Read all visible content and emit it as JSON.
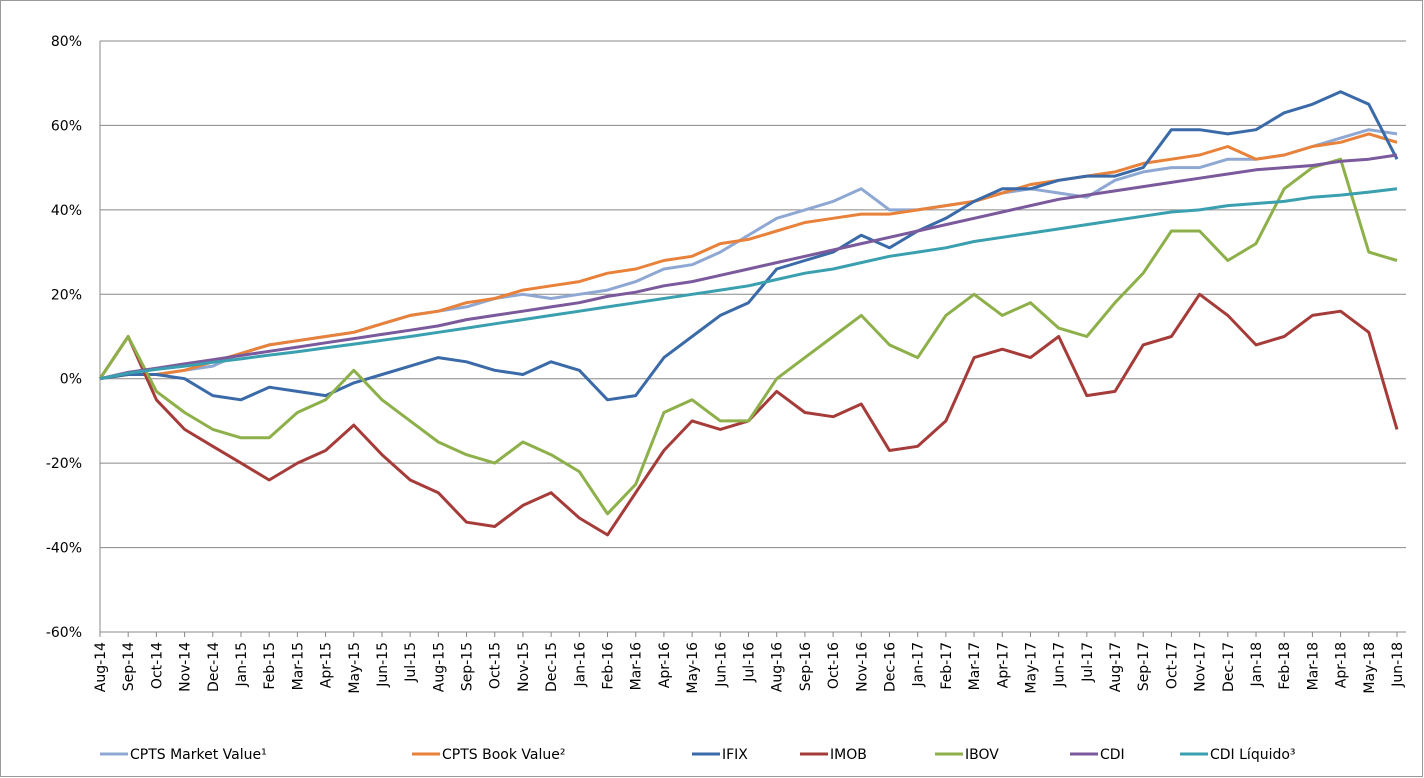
{
  "chart_data": {
    "type": "line",
    "categories": [
      "Aug-14",
      "Sep-14",
      "Oct-14",
      "Nov-14",
      "Dec-14",
      "Jan-15",
      "Feb-15",
      "Mar-15",
      "Apr-15",
      "May-15",
      "Jun-15",
      "Jul-15",
      "Aug-15",
      "Sep-15",
      "Oct-15",
      "Nov-15",
      "Dec-15",
      "Jan-16",
      "Feb-16",
      "Mar-16",
      "Apr-16",
      "May-16",
      "Jun-16",
      "Jul-16",
      "Aug-16",
      "Sep-16",
      "Oct-16",
      "Nov-16",
      "Dec-16",
      "Jan-17",
      "Feb-17",
      "Mar-17",
      "Apr-17",
      "May-17",
      "Jun-17",
      "Jul-17",
      "Aug-17",
      "Sep-17",
      "Oct-17",
      "Nov-17",
      "Dec-17",
      "Jan-18",
      "Feb-18",
      "Mar-18",
      "Apr-18",
      "May-18",
      "Jun-18"
    ],
    "series": [
      {
        "name": "CPTS Market Value¹",
        "color": "#8fa8d3",
        "values": [
          0,
          1,
          1,
          2,
          3,
          6,
          8,
          9,
          10,
          11,
          13,
          15,
          16,
          17,
          19,
          20,
          19,
          20,
          21,
          23,
          26,
          27,
          30,
          34,
          38,
          40,
          42,
          45,
          40,
          40,
          41,
          42,
          44,
          45,
          44,
          43,
          47,
          49,
          50,
          50,
          52,
          52,
          53,
          55,
          57,
          59,
          58
        ]
      },
      {
        "name": "CPTS Book Value²",
        "color": "#e8823a",
        "values": [
          0,
          1,
          1,
          2,
          4,
          6,
          8,
          9,
          10,
          11,
          13,
          15,
          16,
          18,
          19,
          21,
          22,
          23,
          25,
          26,
          28,
          29,
          32,
          33,
          35,
          37,
          38,
          39,
          39,
          40,
          41,
          42,
          44,
          46,
          47,
          48,
          49,
          51,
          52,
          53,
          55,
          52,
          53,
          55,
          56,
          58,
          56
        ]
      },
      {
        "name": "IFIX",
        "color": "#3a6aa8",
        "values": [
          0,
          1,
          1,
          0,
          -4,
          -5,
          -2,
          -3,
          -4,
          -1,
          1,
          3,
          5,
          4,
          2,
          1,
          4,
          2,
          -5,
          -4,
          5,
          10,
          15,
          18,
          26,
          28,
          30,
          34,
          31,
          35,
          38,
          42,
          45,
          45,
          47,
          48,
          48,
          50,
          59,
          59,
          58,
          59,
          63,
          65,
          68,
          65,
          52
        ]
      },
      {
        "name": "IMOB",
        "color": "#a63c3a",
        "values": [
          0,
          10,
          -5,
          -12,
          -16,
          -20,
          -24,
          -20,
          -17,
          -11,
          -18,
          -24,
          -27,
          -34,
          -35,
          -30,
          -27,
          -33,
          -37,
          -27,
          -17,
          -10,
          -12,
          -10,
          -3,
          -8,
          -9,
          -6,
          -17,
          -16,
          -10,
          5,
          7,
          5,
          10,
          -4,
          -3,
          8,
          10,
          20,
          15,
          8,
          10,
          15,
          16,
          11,
          -12
        ]
      },
      {
        "name": "IBOV",
        "color": "#8db04a",
        "values": [
          0,
          10,
          -3,
          -8,
          -12,
          -14,
          -14,
          -8,
          -5,
          2,
          -5,
          -10,
          -15,
          -18,
          -20,
          -15,
          -18,
          -22,
          -32,
          -25,
          -8,
          -5,
          -10,
          -10,
          0,
          5,
          10,
          15,
          8,
          5,
          15,
          20,
          15,
          18,
          12,
          10,
          18,
          25,
          35,
          35,
          28,
          32,
          45,
          50,
          52,
          30,
          28
        ]
      },
      {
        "name": "CDI",
        "color": "#7a5a9c",
        "values": [
          0,
          1.5,
          2.5,
          3.5,
          4.5,
          5.5,
          6.5,
          7.5,
          8.5,
          9.5,
          10.5,
          11.5,
          12.5,
          14,
          15,
          16,
          17,
          18,
          19.5,
          20.5,
          22,
          23,
          24.5,
          26,
          27.5,
          29,
          30.5,
          32,
          33.5,
          35,
          36.5,
          38,
          39.5,
          41,
          42.5,
          43.5,
          44.5,
          45.5,
          46.5,
          47.5,
          48.5,
          49.5,
          50,
          50.5,
          51.5,
          52,
          53
        ]
      },
      {
        "name": "CDI Líquido³",
        "color": "#3aa0b0",
        "values": [
          0,
          1.3,
          2.2,
          3,
          3.9,
          4.7,
          5.6,
          6.4,
          7.3,
          8.2,
          9.1,
          10,
          11,
          12,
          13,
          14,
          15,
          16,
          17,
          18,
          19,
          20,
          21,
          22,
          23.5,
          25,
          26,
          27.5,
          29,
          30,
          31,
          32.5,
          33.5,
          34.5,
          35.5,
          36.5,
          37.5,
          38.5,
          39.5,
          40,
          41,
          41.5,
          42,
          43,
          43.5,
          44.2,
          45
        ]
      }
    ],
    "ylim": [
      -60,
      80
    ],
    "yticks": [
      {
        "value": -60,
        "label": "-60%"
      },
      {
        "value": -40,
        "label": "-40%"
      },
      {
        "value": -20,
        "label": "-20%"
      },
      {
        "value": 0,
        "label": "0%"
      },
      {
        "value": 20,
        "label": "20%"
      },
      {
        "value": 40,
        "label": "40%"
      },
      {
        "value": 60,
        "label": "60%"
      },
      {
        "value": 80,
        "label": "80%"
      }
    ],
    "grid": true,
    "legend": "bottom"
  }
}
